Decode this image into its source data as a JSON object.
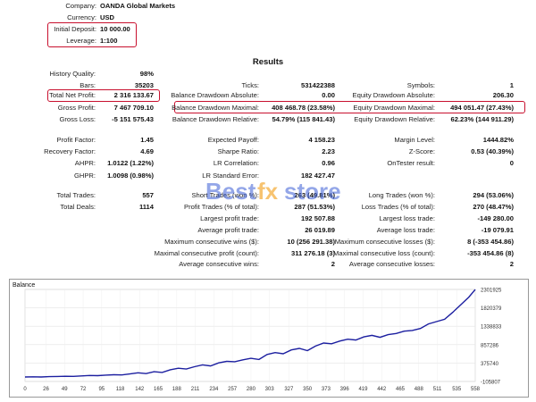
{
  "header": {
    "company_label": "Company:",
    "company_value": "OANDA Global Markets",
    "currency_label": "Currency:",
    "currency_value": "USD",
    "deposit_label": "Initial Deposit:",
    "deposit_value": "10 000.00",
    "leverage_label": "Leverage:",
    "leverage_value": "1:100"
  },
  "results_title": "Results",
  "col1": [
    {
      "label": "History Quality:",
      "value": "98%"
    },
    {
      "label": "Bars:",
      "value": "35203"
    },
    {
      "label": "Total Net Profit:",
      "value": "2 316 133.67"
    },
    {
      "label": "Gross Profit:",
      "value": "7 467 709.10"
    },
    {
      "label": "Gross Loss:",
      "value": "-5 151 575.43"
    },
    {
      "label": "Profit Factor:",
      "value": "1.45"
    },
    {
      "label": "Recovery Factor:",
      "value": "4.69"
    },
    {
      "label": "AHPR:",
      "value": "1.0122 (1.22%)"
    },
    {
      "label": "GHPR:",
      "value": "1.0098 (0.98%)"
    },
    {
      "label": "Total Trades:",
      "value": "557"
    },
    {
      "label": "Total Deals:",
      "value": "1114"
    }
  ],
  "col2": [
    {
      "label": "Ticks:",
      "value": "531422388"
    },
    {
      "label": "Balance Drawdown Absolute:",
      "value": "0.00"
    },
    {
      "label": "Balance Drawdown Maximal:",
      "value": "408 468.78 (23.58%)"
    },
    {
      "label": "Balance Drawdown Relative:",
      "value": "54.79% (115 841.43)"
    },
    {
      "label": "Expected Payoff:",
      "value": "4 158.23"
    },
    {
      "label": "Sharpe Ratio:",
      "value": "2.23"
    },
    {
      "label": "LR Correlation:",
      "value": "0.96"
    },
    {
      "label": "LR Standard Error:",
      "value": "182 427.47"
    },
    {
      "label": "Short Trades (won %):",
      "value": "263 (49.81%)"
    },
    {
      "label": "Profit Trades (% of total):",
      "value": "287 (51.53%)"
    },
    {
      "label": "Largest profit trade:",
      "value": "192 507.88"
    },
    {
      "label": "Average profit trade:",
      "value": "26 019.89"
    },
    {
      "label": "Maximum consecutive wins ($):",
      "value": "10 (256 291.38)"
    },
    {
      "label": "Maximal consecutive profit (count):",
      "value": "311 276.18 (3)"
    },
    {
      "label": "Average consecutive wins:",
      "value": "2"
    }
  ],
  "col3": [
    {
      "label": "Symbols:",
      "value": "1"
    },
    {
      "label": "Equity Drawdown Absolute:",
      "value": "206.30"
    },
    {
      "label": "Equity Drawdown Maximal:",
      "value": "494 051.47 (27.43%)"
    },
    {
      "label": "Equity Drawdown Relative:",
      "value": "62.23% (144 911.29)"
    },
    {
      "label": "Margin Level:",
      "value": "1444.82%"
    },
    {
      "label": "Z-Score:",
      "value": "0.53 (40.39%)"
    },
    {
      "label": "OnTester result:",
      "value": "0"
    },
    {
      "label": "Long Trades (won %):",
      "value": "294 (53.06%)"
    },
    {
      "label": "Loss Trades (% of total):",
      "value": "270 (48.47%)"
    },
    {
      "label": "Largest loss trade:",
      "value": "-149 280.00"
    },
    {
      "label": "Average loss trade:",
      "value": "-19 079.91"
    },
    {
      "label": "Maximum consecutive losses ($):",
      "value": "8 (-353 454.86)"
    },
    {
      "label": "Maximal consecutive loss (count):",
      "value": "-353 454.86 (8)"
    },
    {
      "label": "Average consecutive losses:",
      "value": "2"
    }
  ],
  "watermark": {
    "text1": "Best",
    "text2": "fx",
    "text3": "store"
  },
  "colors": {
    "accent_red": "#c8102e",
    "line_blue": "#1c1fa0",
    "watermark_blue": "#3b5fd6",
    "watermark_orange": "#f39c12"
  },
  "chart_data": {
    "type": "line",
    "title": "Balance",
    "x_ticks": [
      "0",
      "26",
      "49",
      "72",
      "95",
      "118",
      "142",
      "165",
      "188",
      "211",
      "234",
      "257",
      "280",
      "303",
      "327",
      "350",
      "373",
      "396",
      "419",
      "442",
      "465",
      "488",
      "511",
      "535",
      "558"
    ],
    "y_ticks": [
      "2301925",
      "1820379",
      "1338833",
      "857286",
      "375740",
      "-105807"
    ],
    "ylim": [
      -105807,
      2301925
    ],
    "xlim": [
      0,
      558
    ],
    "series": [
      {
        "x": [
          0,
          10,
          20,
          30,
          40,
          50,
          60,
          70,
          80,
          90,
          100,
          110,
          120,
          130,
          140,
          150,
          160,
          170,
          180,
          190,
          200,
          210,
          220,
          230,
          240,
          250,
          260,
          270,
          280,
          290,
          300,
          310,
          320,
          330,
          340,
          350,
          360,
          370,
          380,
          390,
          400,
          410,
          420,
          430,
          440,
          450,
          460,
          470,
          480,
          490,
          500,
          510,
          520,
          530,
          540,
          550,
          558
        ],
        "y": [
          10000,
          15000,
          12000,
          20000,
          25000,
          30000,
          28000,
          40000,
          50000,
          45000,
          60000,
          70000,
          65000,
          90000,
          120000,
          100000,
          150000,
          130000,
          200000,
          240000,
          220000,
          280000,
          330000,
          300000,
          380000,
          420000,
          410000,
          460000,
          500000,
          470000,
          600000,
          650000,
          620000,
          720000,
          760000,
          700000,
          820000,
          900000,
          880000,
          950000,
          1000000,
          980000,
          1060000,
          1100000,
          1050000,
          1120000,
          1150000,
          1210000,
          1230000,
          1280000,
          1400000,
          1460000,
          1520000,
          1700000,
          1900000,
          2100000,
          2300000
        ]
      }
    ]
  }
}
